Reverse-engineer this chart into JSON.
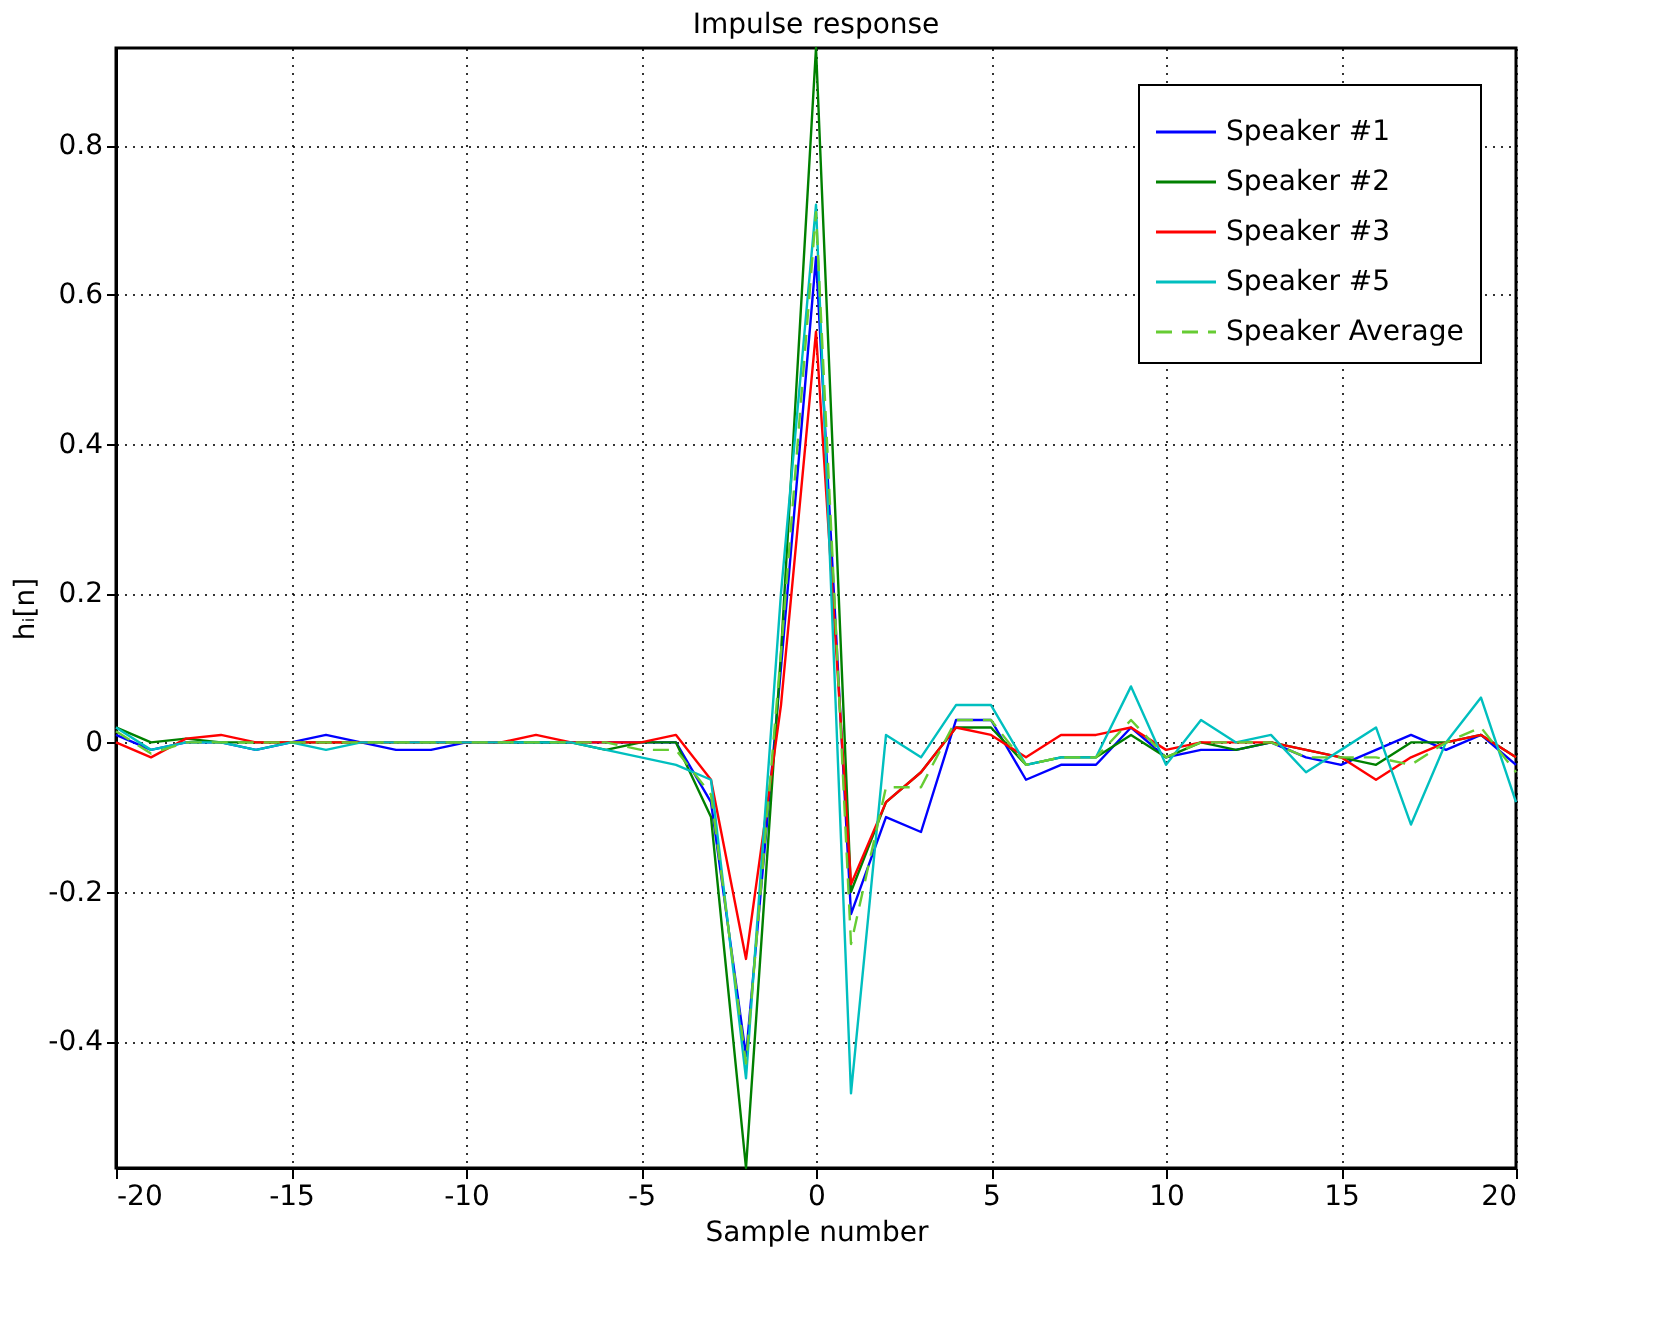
{
  "chart_data": {
    "type": "line",
    "title": "Impulse response",
    "xlabel": "Sample number",
    "ylabel": "hᵢ[n]",
    "x": [
      -20,
      -19,
      -18,
      -17,
      -16,
      -15,
      -14,
      -13,
      -12,
      -11,
      -10,
      -9,
      -8,
      -7,
      -6,
      -5,
      -4,
      -3,
      -2,
      -1,
      0,
      1,
      2,
      3,
      4,
      5,
      6,
      7,
      8,
      9,
      10,
      11,
      12,
      13,
      14,
      15,
      16,
      17,
      18,
      19,
      20
    ],
    "series": [
      {
        "name": "Speaker #1",
        "color": "#0000ff",
        "values": [
          0.01,
          -0.01,
          0.0,
          0.0,
          -0.01,
          0.0,
          0.01,
          0.0,
          -0.01,
          -0.01,
          0.0,
          0.0,
          0.0,
          0.0,
          0.0,
          0.0,
          0.0,
          -0.08,
          -0.42,
          0.1,
          0.65,
          -0.23,
          -0.1,
          -0.12,
          0.03,
          0.03,
          -0.05,
          -0.03,
          -0.03,
          0.02,
          -0.02,
          -0.01,
          -0.01,
          0.0,
          -0.02,
          -0.03,
          -0.01,
          0.01,
          -0.01,
          0.01,
          -0.03
        ]
      },
      {
        "name": "Speaker #2",
        "color": "#008000",
        "values": [
          0.02,
          0.0,
          0.005,
          0.0,
          0.0,
          0.0,
          0.0,
          0.0,
          0.0,
          0.0,
          0.0,
          0.0,
          0.0,
          0.0,
          -0.01,
          0.0,
          0.0,
          -0.1,
          -0.57,
          0.12,
          0.93,
          -0.2,
          -0.08,
          -0.04,
          0.02,
          0.02,
          -0.03,
          -0.02,
          -0.02,
          0.01,
          -0.02,
          0.0,
          -0.01,
          0.0,
          -0.01,
          -0.02,
          -0.03,
          0.0,
          0.0,
          0.01,
          -0.02
        ]
      },
      {
        "name": "Speaker #3",
        "color": "#ff0000",
        "values": [
          0.0,
          -0.02,
          0.005,
          0.01,
          0.0,
          0.0,
          0.0,
          0.0,
          0.0,
          0.0,
          0.0,
          0.0,
          0.01,
          0.0,
          0.0,
          0.0,
          0.01,
          -0.05,
          -0.29,
          0.05,
          0.55,
          -0.19,
          -0.08,
          -0.04,
          0.02,
          0.01,
          -0.02,
          0.01,
          0.01,
          0.02,
          -0.01,
          0.0,
          0.0,
          0.0,
          -0.01,
          -0.02,
          -0.05,
          -0.02,
          0.0,
          0.01,
          -0.02
        ]
      },
      {
        "name": "Speaker #5",
        "color": "#00bfbf",
        "values": [
          0.02,
          -0.01,
          0.0,
          0.0,
          -0.01,
          0.0,
          -0.01,
          0.0,
          0.0,
          0.0,
          0.0,
          0.0,
          0.0,
          0.0,
          -0.01,
          -0.02,
          -0.03,
          -0.05,
          -0.45,
          0.2,
          0.72,
          -0.47,
          0.01,
          -0.02,
          0.05,
          0.05,
          -0.03,
          -0.02,
          -0.02,
          0.075,
          -0.03,
          0.03,
          0.0,
          0.01,
          -0.04,
          -0.01,
          0.02,
          -0.11,
          0.0,
          0.06,
          -0.08
        ]
      },
      {
        "name": "Speaker Average",
        "color": "#66cc33",
        "line_style": "dashed",
        "values": [
          0.015,
          -0.015,
          0.0,
          0.0,
          0.0,
          0.0,
          0.0,
          0.0,
          0.0,
          0.0,
          0.0,
          0.0,
          0.0,
          0.0,
          0.0,
          -0.01,
          -0.01,
          -0.07,
          -0.43,
          0.12,
          0.71,
          -0.27,
          -0.06,
          -0.06,
          0.03,
          0.03,
          -0.03,
          -0.02,
          -0.02,
          0.03,
          -0.02,
          0.0,
          0.0,
          0.0,
          -0.02,
          -0.02,
          -0.02,
          -0.03,
          0.0,
          0.02,
          -0.04
        ]
      }
    ],
    "xlim": [
      -20,
      20
    ],
    "xticks": [
      -20,
      -15,
      -10,
      -5,
      0,
      5,
      10,
      15,
      20
    ],
    "ylim": [
      -0.57,
      0.93
    ],
    "yticks": [
      -0.4,
      -0.2,
      0,
      0.2,
      0.4,
      0.6,
      0.8
    ],
    "grid": true,
    "legend": "top right",
    "line_style": "solid",
    "marker": "none"
  }
}
